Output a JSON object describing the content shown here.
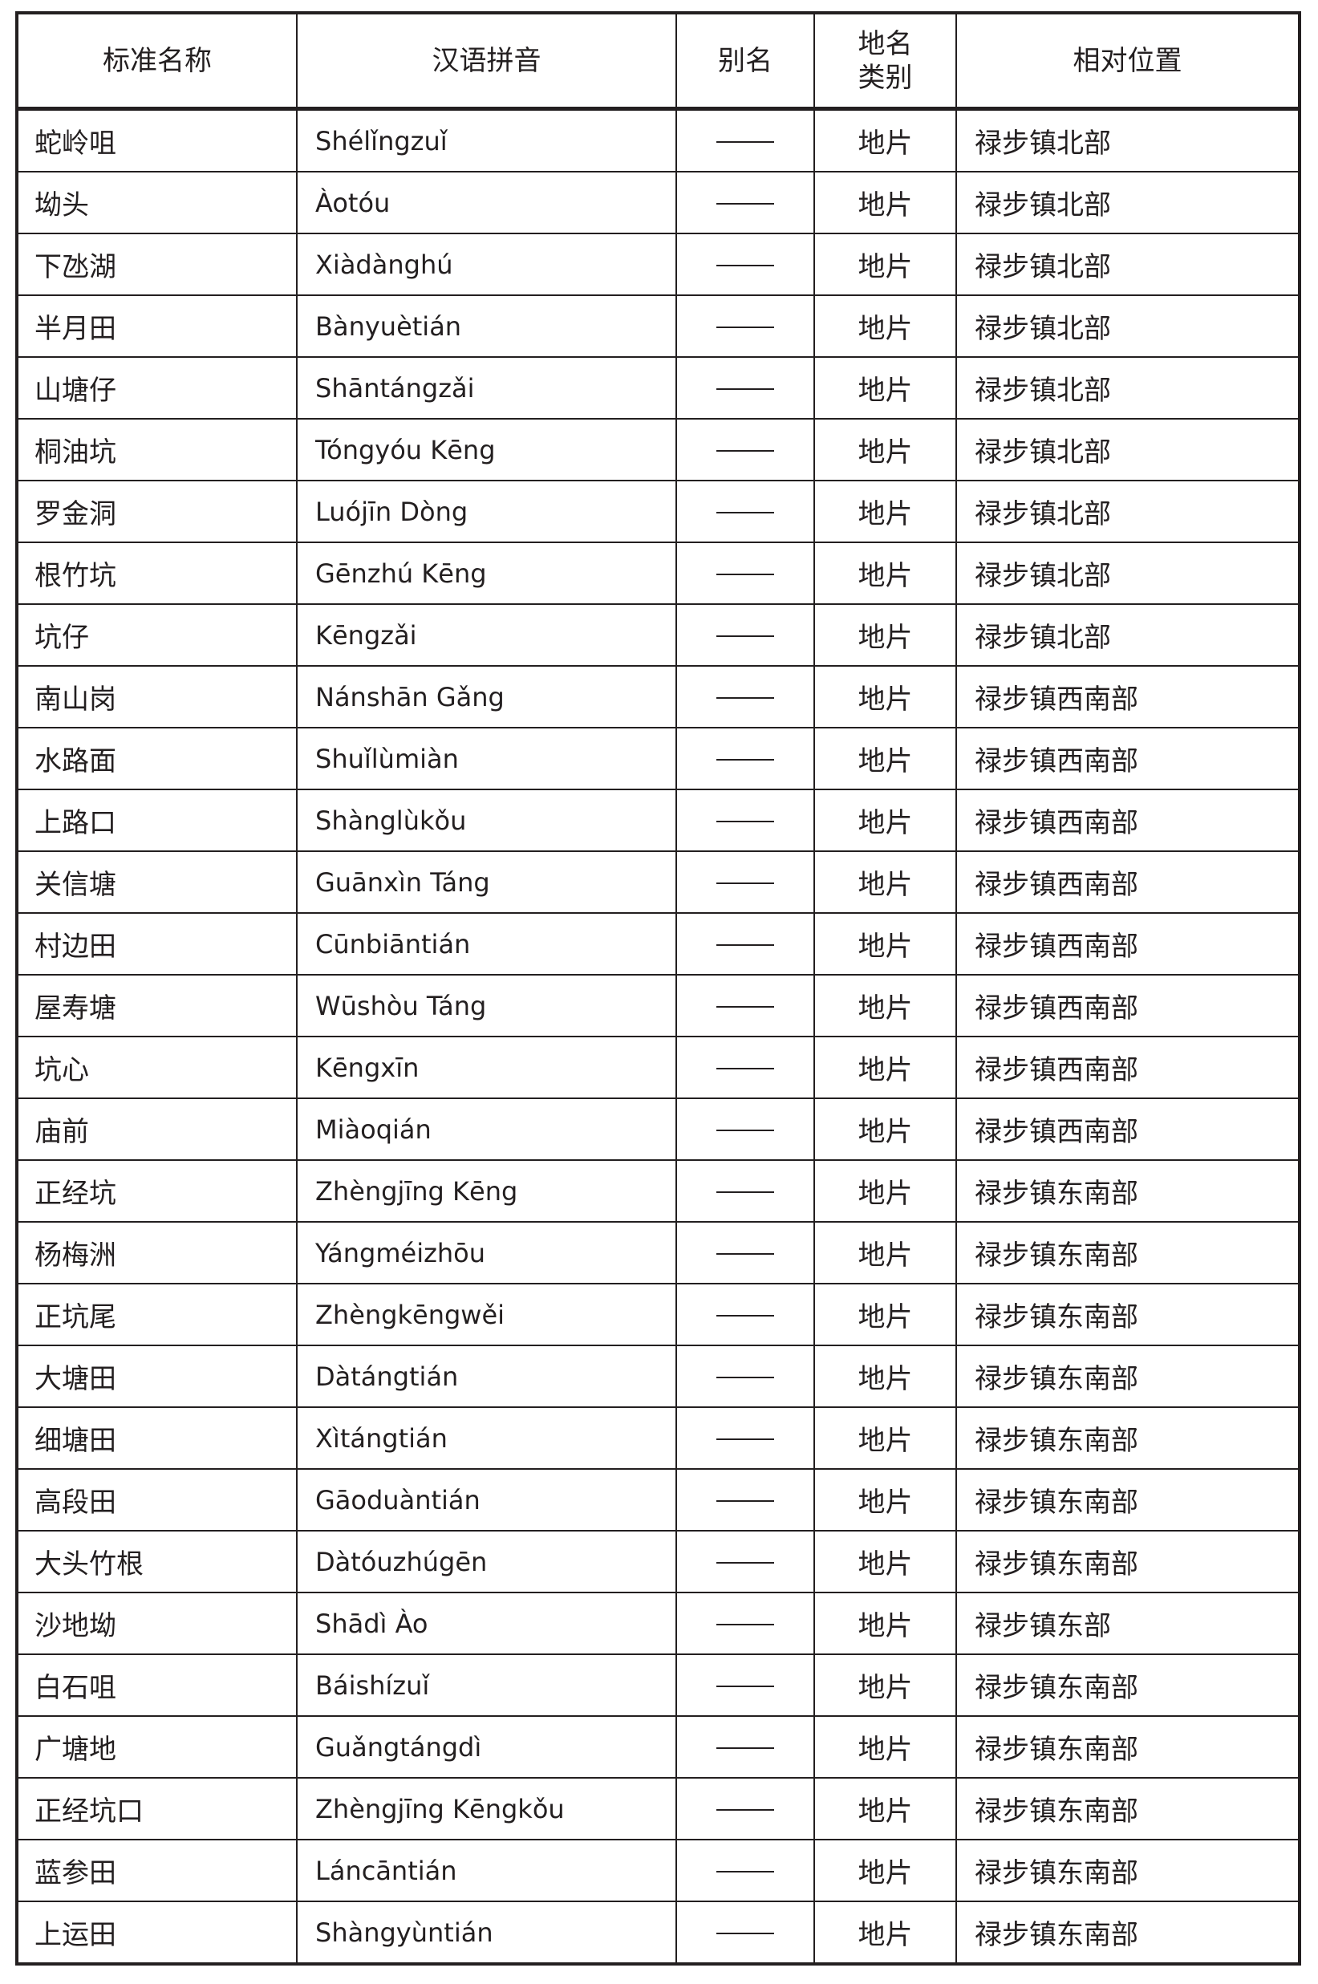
{
  "headers": [
    "标准名称",
    "汉语拼音",
    "别名",
    "地名类别",
    "相对位置"
  ],
  "header_type_lines": [
    "地名",
    "类别"
  ],
  "rows": [
    {
      "name": "蛇岭咀",
      "pinyin": "Shélǐngzuǐ",
      "alias": "——",
      "type": "地片",
      "location": "禄步镇北部"
    },
    {
      "name": "坳头",
      "pinyin": "Àotóu",
      "alias": "——",
      "type": "地片",
      "location": "禄步镇北部"
    },
    {
      "name": "下氹湖",
      "pinyin": "Xiàdànghú",
      "alias": "——",
      "type": "地片",
      "location": "禄步镇北部"
    },
    {
      "name": "半月田",
      "pinyin": "Bànyuètián",
      "alias": "——",
      "type": "地片",
      "location": "禄步镇北部"
    },
    {
      "name": "山塘仔",
      "pinyin": "Shāntángzǎi",
      "alias": "——",
      "type": "地片",
      "location": "禄步镇北部"
    },
    {
      "name": "桐油坑",
      "pinyin": "Tóngyóu Kēng",
      "alias": "——",
      "type": "地片",
      "location": "禄步镇北部"
    },
    {
      "name": "罗金洞",
      "pinyin": "Luójīn Dòng",
      "alias": "——",
      "type": "地片",
      "location": "禄步镇北部"
    },
    {
      "name": "根竹坑",
      "pinyin": "Gēnzhú Kēng",
      "alias": "——",
      "type": "地片",
      "location": "禄步镇北部"
    },
    {
      "name": "坑仔",
      "pinyin": "Kēngzǎi",
      "alias": "——",
      "type": "地片",
      "location": "禄步镇北部"
    },
    {
      "name": "南山岗",
      "pinyin": "Nánshān Gǎng",
      "alias": "——",
      "type": "地片",
      "location": "禄步镇西南部"
    },
    {
      "name": "水路面",
      "pinyin": "Shuǐlùmiàn",
      "alias": "——",
      "type": "地片",
      "location": "禄步镇西南部"
    },
    {
      "name": "上路口",
      "pinyin": "Shànglùkǒu",
      "alias": "——",
      "type": "地片",
      "location": "禄步镇西南部"
    },
    {
      "name": "关信塘",
      "pinyin": "Guānxìn Táng",
      "alias": "——",
      "type": "地片",
      "location": "禄步镇西南部"
    },
    {
      "name": "村边田",
      "pinyin": "Cūnbiāntián",
      "alias": "——",
      "type": "地片",
      "location": "禄步镇西南部"
    },
    {
      "name": "屋寿塘",
      "pinyin": "Wūshòu Táng",
      "alias": "——",
      "type": "地片",
      "location": "禄步镇西南部"
    },
    {
      "name": "坑心",
      "pinyin": "Kēngxīn",
      "alias": "——",
      "type": "地片",
      "location": "禄步镇西南部"
    },
    {
      "name": "庙前",
      "pinyin": "Miàoqián",
      "alias": "——",
      "type": "地片",
      "location": "禄步镇西南部"
    },
    {
      "name": "正经坑",
      "pinyin": "Zhèngjīng Kēng",
      "alias": "——",
      "type": "地片",
      "location": "禄步镇东南部"
    },
    {
      "name": "杨梅洲",
      "pinyin": "Yángméizhōu",
      "alias": "——",
      "type": "地片",
      "location": "禄步镇东南部"
    },
    {
      "name": "正坑尾",
      "pinyin": "Zhèngkēngwěi",
      "alias": "——",
      "type": "地片",
      "location": "禄步镇东南部"
    },
    {
      "name": "大塘田",
      "pinyin": "Dàtángtián",
      "alias": "——",
      "type": "地片",
      "location": "禄步镇东南部"
    },
    {
      "name": "细塘田",
      "pinyin": "Xìtángtián",
      "alias": "——",
      "type": "地片",
      "location": "禄步镇东南部"
    },
    {
      "name": "高段田",
      "pinyin": "Gāoduàntián",
      "alias": "——",
      "type": "地片",
      "location": "禄步镇东南部"
    },
    {
      "name": "大头竹根",
      "pinyin": "Dàtóuzhúgēn",
      "alias": "——",
      "type": "地片",
      "location": "禄步镇东南部"
    },
    {
      "name": "沙地坳",
      "pinyin": "Shādì Ào",
      "alias": "——",
      "type": "地片",
      "location": "禄步镇东部"
    },
    {
      "name": "白石咀",
      "pinyin": "Báishízuǐ",
      "alias": "——",
      "type": "地片",
      "location": "禄步镇东南部"
    },
    {
      "name": "广塘地",
      "pinyin": "Guǎngtángdì",
      "alias": "——",
      "type": "地片",
      "location": "禄步镇东南部"
    },
    {
      "name": "正经坑口",
      "pinyin": "Zhèngjīng Kēngkǒu",
      "alias": "——",
      "type": "地片",
      "location": "禄步镇东南部"
    },
    {
      "name": "蓝参田",
      "pinyin": "Láncāntián",
      "alias": "——",
      "type": "地片",
      "location": "禄步镇东南部"
    },
    {
      "name": "上运田",
      "pinyin": "Shàngyùntián",
      "alias": "——",
      "type": "地片",
      "location": "禄步镇东南部"
    }
  ]
}
